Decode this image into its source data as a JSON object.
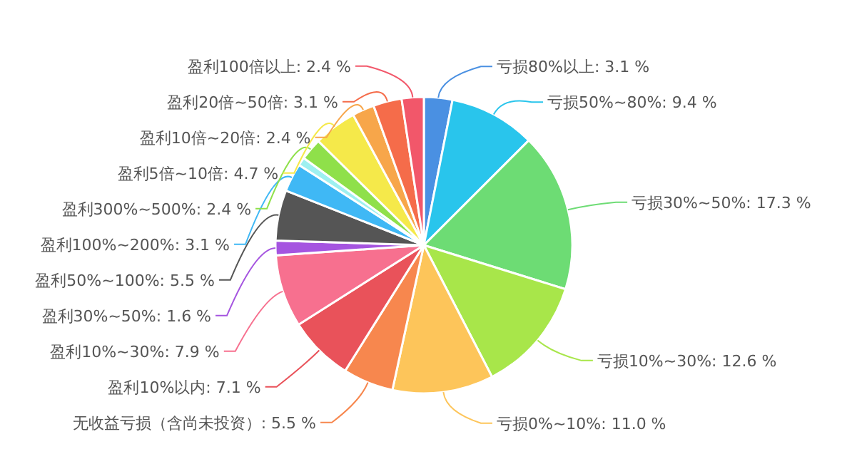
{
  "chart_data": {
    "type": "pie",
    "categories": [
      "亏损80%以上",
      "亏损50%~80%",
      "亏损30%~50%",
      "亏损10%~30%",
      "亏损0%~10%",
      "无收益亏损（含尚未投资）",
      "盈利10%以内",
      "盈利10%~30%",
      "盈利30%~50%",
      "盈利50%~100%",
      "盈利100%~200%",
      null,
      "盈利300%~500%",
      "盈利5倍~10倍",
      "盈利10倍~20倍",
      "盈利20倍~50倍",
      "盈利100倍以上"
    ],
    "values": [
      3.1,
      9.4,
      17.3,
      12.6,
      11.0,
      5.5,
      7.1,
      7.9,
      1.6,
      5.5,
      3.1,
      0.9,
      2.4,
      4.7,
      2.4,
      3.1,
      2.4
    ],
    "value_labels": [
      "3.1 %",
      "9.4 %",
      "17.3 %",
      "12.6 %",
      "11.0 %",
      "5.5 %",
      "7.1 %",
      "7.9 %",
      "1.6 %",
      "5.5 %",
      "3.1 %",
      null,
      "2.4 %",
      "4.7 %",
      "2.4 %",
      "3.1 %",
      "2.4 %"
    ],
    "colors": [
      "#4a90e2",
      "#29c5ec",
      "#6ddc74",
      "#a8e64a",
      "#fdc55a",
      "#f7874e",
      "#e9525a",
      "#f7708f",
      "#a554e0",
      "#555555",
      "#3fb8f5",
      "#9ef0f0",
      "#8fe04a",
      "#f5e94a",
      "#f7a64a",
      "#f56c4a",
      "#f2576a"
    ]
  }
}
